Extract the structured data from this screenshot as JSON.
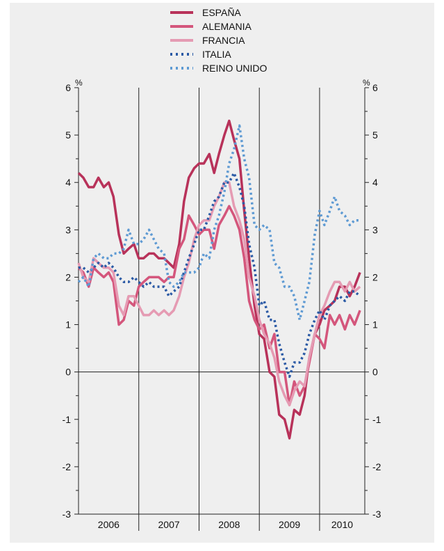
{
  "chart_data": {
    "type": "line",
    "title": "",
    "xlabel": "",
    "ylabel": "%",
    "ylabel_right": "%",
    "ylim": [
      -3,
      6
    ],
    "y_ticks": [
      "-3",
      "-2",
      "-1",
      "0",
      "1",
      "2",
      "3",
      "4",
      "5",
      "6"
    ],
    "x_categories": [
      "2006",
      "2007",
      "2008",
      "2009",
      "2010"
    ],
    "xlim": [
      2006.0,
      2010.75
    ],
    "grid": false,
    "zero_line": true,
    "legend_position": "top-center",
    "series": [
      {
        "name": "ESPAÑA",
        "color": "#b8325a",
        "style": "solid",
        "points": [
          [
            2006.0,
            4.2
          ],
          [
            2006.08,
            4.1
          ],
          [
            2006.17,
            3.9
          ],
          [
            2006.25,
            3.9
          ],
          [
            2006.33,
            4.1
          ],
          [
            2006.42,
            3.9
          ],
          [
            2006.5,
            4.0
          ],
          [
            2006.58,
            3.7
          ],
          [
            2006.67,
            2.9
          ],
          [
            2006.75,
            2.5
          ],
          [
            2006.83,
            2.6
          ],
          [
            2006.92,
            2.7
          ],
          [
            2007.0,
            2.4
          ],
          [
            2007.08,
            2.4
          ],
          [
            2007.17,
            2.5
          ],
          [
            2007.25,
            2.5
          ],
          [
            2007.33,
            2.4
          ],
          [
            2007.42,
            2.4
          ],
          [
            2007.5,
            2.3
          ],
          [
            2007.58,
            2.2
          ],
          [
            2007.67,
            2.7
          ],
          [
            2007.75,
            3.6
          ],
          [
            2007.83,
            4.1
          ],
          [
            2007.92,
            4.3
          ],
          [
            2008.0,
            4.4
          ],
          [
            2008.08,
            4.4
          ],
          [
            2008.17,
            4.6
          ],
          [
            2008.25,
            4.2
          ],
          [
            2008.33,
            4.6
          ],
          [
            2008.42,
            5.0
          ],
          [
            2008.5,
            5.3
          ],
          [
            2008.58,
            4.9
          ],
          [
            2008.67,
            4.5
          ],
          [
            2008.75,
            3.4
          ],
          [
            2008.83,
            2.4
          ],
          [
            2008.92,
            1.4
          ],
          [
            2009.0,
            0.8
          ],
          [
            2009.08,
            0.7
          ],
          [
            2009.17,
            0.0
          ],
          [
            2009.25,
            -0.1
          ],
          [
            2009.33,
            -0.9
          ],
          [
            2009.42,
            -1.0
          ],
          [
            2009.5,
            -1.4
          ],
          [
            2009.58,
            -0.8
          ],
          [
            2009.67,
            -0.9
          ],
          [
            2009.75,
            -0.5
          ],
          [
            2009.83,
            0.3
          ],
          [
            2009.92,
            0.8
          ],
          [
            2010.0,
            1.0
          ],
          [
            2010.08,
            1.3
          ],
          [
            2010.17,
            1.4
          ],
          [
            2010.25,
            1.5
          ],
          [
            2010.33,
            1.8
          ],
          [
            2010.42,
            1.8
          ],
          [
            2010.5,
            1.6
          ],
          [
            2010.58,
            1.8
          ],
          [
            2010.67,
            2.1
          ]
        ]
      },
      {
        "name": "ALEMANIA",
        "color": "#d4567c",
        "style": "solid",
        "points": [
          [
            2006.0,
            2.2
          ],
          [
            2006.08,
            2.1
          ],
          [
            2006.17,
            1.8
          ],
          [
            2006.25,
            2.2
          ],
          [
            2006.33,
            2.1
          ],
          [
            2006.42,
            2.0
          ],
          [
            2006.5,
            2.1
          ],
          [
            2006.58,
            1.9
          ],
          [
            2006.67,
            1.0
          ],
          [
            2006.75,
            1.1
          ],
          [
            2006.83,
            1.5
          ],
          [
            2006.92,
            1.4
          ],
          [
            2007.0,
            1.8
          ],
          [
            2007.08,
            1.9
          ],
          [
            2007.17,
            2.0
          ],
          [
            2007.25,
            2.0
          ],
          [
            2007.33,
            2.0
          ],
          [
            2007.42,
            1.9
          ],
          [
            2007.5,
            2.0
          ],
          [
            2007.58,
            2.0
          ],
          [
            2007.67,
            2.6
          ],
          [
            2007.75,
            2.8
          ],
          [
            2007.83,
            3.3
          ],
          [
            2007.92,
            3.1
          ],
          [
            2008.0,
            2.9
          ],
          [
            2008.08,
            3.0
          ],
          [
            2008.17,
            3.0
          ],
          [
            2008.25,
            2.6
          ],
          [
            2008.33,
            3.1
          ],
          [
            2008.42,
            3.3
          ],
          [
            2008.5,
            3.5
          ],
          [
            2008.58,
            3.3
          ],
          [
            2008.67,
            3.0
          ],
          [
            2008.75,
            2.4
          ],
          [
            2008.83,
            1.5
          ],
          [
            2008.92,
            1.1
          ],
          [
            2009.0,
            0.9
          ],
          [
            2009.08,
            1.0
          ],
          [
            2009.17,
            0.5
          ],
          [
            2009.25,
            0.8
          ],
          [
            2009.33,
            0.0
          ],
          [
            2009.42,
            0.0
          ],
          [
            2009.5,
            -0.7
          ],
          [
            2009.58,
            -0.2
          ],
          [
            2009.67,
            -0.5
          ],
          [
            2009.75,
            -0.3
          ],
          [
            2009.83,
            0.2
          ],
          [
            2009.92,
            0.8
          ],
          [
            2010.0,
            0.7
          ],
          [
            2010.08,
            0.5
          ],
          [
            2010.17,
            1.2
          ],
          [
            2010.25,
            1.0
          ],
          [
            2010.33,
            1.2
          ],
          [
            2010.42,
            0.9
          ],
          [
            2010.5,
            1.2
          ],
          [
            2010.58,
            1.0
          ],
          [
            2010.67,
            1.3
          ]
        ]
      },
      {
        "name": "FRANCIA",
        "color": "#e59bb3",
        "style": "solid",
        "points": [
          [
            2006.0,
            2.3
          ],
          [
            2006.08,
            2.0
          ],
          [
            2006.17,
            1.9
          ],
          [
            2006.25,
            2.4
          ],
          [
            2006.33,
            2.3
          ],
          [
            2006.42,
            2.2
          ],
          [
            2006.5,
            2.2
          ],
          [
            2006.58,
            2.1
          ],
          [
            2006.67,
            1.4
          ],
          [
            2006.75,
            1.2
          ],
          [
            2006.83,
            1.6
          ],
          [
            2006.92,
            1.6
          ],
          [
            2007.0,
            1.4
          ],
          [
            2007.08,
            1.2
          ],
          [
            2007.17,
            1.2
          ],
          [
            2007.25,
            1.3
          ],
          [
            2007.33,
            1.2
          ],
          [
            2007.42,
            1.3
          ],
          [
            2007.5,
            1.2
          ],
          [
            2007.58,
            1.3
          ],
          [
            2007.67,
            1.6
          ],
          [
            2007.75,
            2.0
          ],
          [
            2007.83,
            2.3
          ],
          [
            2007.92,
            2.8
          ],
          [
            2008.0,
            3.1
          ],
          [
            2008.08,
            3.2
          ],
          [
            2008.17,
            3.2
          ],
          [
            2008.25,
            3.5
          ],
          [
            2008.33,
            3.7
          ],
          [
            2008.42,
            4.0
          ],
          [
            2008.5,
            4.0
          ],
          [
            2008.58,
            3.5
          ],
          [
            2008.67,
            3.2
          ],
          [
            2008.75,
            2.8
          ],
          [
            2008.83,
            2.0
          ],
          [
            2008.92,
            1.6
          ],
          [
            2009.0,
            1.1
          ],
          [
            2009.08,
            0.8
          ],
          [
            2009.17,
            0.6
          ],
          [
            2009.25,
            0.3
          ],
          [
            2009.33,
            -0.2
          ],
          [
            2009.42,
            -0.5
          ],
          [
            2009.5,
            -0.7
          ],
          [
            2009.58,
            -0.4
          ],
          [
            2009.67,
            -0.2
          ],
          [
            2009.75,
            -0.3
          ],
          [
            2009.83,
            0.3
          ],
          [
            2009.92,
            0.8
          ],
          [
            2010.0,
            1.2
          ],
          [
            2010.08,
            1.4
          ],
          [
            2010.17,
            1.7
          ],
          [
            2010.25,
            1.9
          ],
          [
            2010.33,
            1.9
          ],
          [
            2010.42,
            1.7
          ],
          [
            2010.5,
            1.9
          ],
          [
            2010.58,
            1.7
          ],
          [
            2010.67,
            1.8
          ]
        ]
      },
      {
        "name": "ITALIA",
        "color": "#2b5aa5",
        "style": "dotted",
        "points": [
          [
            2006.0,
            2.2
          ],
          [
            2006.08,
            2.2
          ],
          [
            2006.17,
            2.1
          ],
          [
            2006.25,
            2.2
          ],
          [
            2006.33,
            2.3
          ],
          [
            2006.42,
            2.2
          ],
          [
            2006.5,
            2.3
          ],
          [
            2006.58,
            2.2
          ],
          [
            2006.67,
            2.0
          ],
          [
            2006.75,
            1.9
          ],
          [
            2006.83,
            1.9
          ],
          [
            2006.92,
            2.0
          ],
          [
            2007.0,
            1.9
          ],
          [
            2007.08,
            1.8
          ],
          [
            2007.17,
            1.9
          ],
          [
            2007.25,
            1.8
          ],
          [
            2007.33,
            1.8
          ],
          [
            2007.42,
            1.8
          ],
          [
            2007.5,
            1.6
          ],
          [
            2007.58,
            1.7
          ],
          [
            2007.67,
            1.8
          ],
          [
            2007.75,
            2.1
          ],
          [
            2007.83,
            2.4
          ],
          [
            2007.92,
            2.7
          ],
          [
            2008.0,
            3.0
          ],
          [
            2008.08,
            3.0
          ],
          [
            2008.17,
            3.3
          ],
          [
            2008.25,
            3.6
          ],
          [
            2008.33,
            3.7
          ],
          [
            2008.42,
            4.0
          ],
          [
            2008.5,
            4.0
          ],
          [
            2008.58,
            4.2
          ],
          [
            2008.67,
            3.9
          ],
          [
            2008.75,
            3.5
          ],
          [
            2008.83,
            2.7
          ],
          [
            2008.92,
            2.2
          ],
          [
            2009.0,
            1.4
          ],
          [
            2009.08,
            1.5
          ],
          [
            2009.17,
            1.1
          ],
          [
            2009.25,
            1.1
          ],
          [
            2009.33,
            0.6
          ],
          [
            2009.42,
            0.2
          ],
          [
            2009.5,
            -0.1
          ],
          [
            2009.58,
            0.2
          ],
          [
            2009.67,
            0.2
          ],
          [
            2009.75,
            0.4
          ],
          [
            2009.83,
            0.8
          ],
          [
            2009.92,
            1.1
          ],
          [
            2010.0,
            1.3
          ],
          [
            2010.08,
            1.1
          ],
          [
            2010.17,
            1.4
          ],
          [
            2010.25,
            1.5
          ],
          [
            2010.33,
            1.6
          ],
          [
            2010.42,
            1.5
          ],
          [
            2010.5,
            1.7
          ],
          [
            2010.58,
            1.7
          ],
          [
            2010.67,
            1.6
          ]
        ]
      },
      {
        "name": "REINO UNIDO",
        "color": "#5e9ad3",
        "style": "dotted",
        "points": [
          [
            2006.0,
            1.9
          ],
          [
            2006.08,
            2.0
          ],
          [
            2006.17,
            1.8
          ],
          [
            2006.25,
            2.4
          ],
          [
            2006.33,
            2.5
          ],
          [
            2006.42,
            2.4
          ],
          [
            2006.5,
            2.4
          ],
          [
            2006.58,
            2.5
          ],
          [
            2006.67,
            2.5
          ],
          [
            2006.75,
            2.6
          ],
          [
            2006.83,
            3.0
          ],
          [
            2006.92,
            2.7
          ],
          [
            2007.0,
            2.7
          ],
          [
            2007.08,
            2.8
          ],
          [
            2007.17,
            3.0
          ],
          [
            2007.25,
            2.8
          ],
          [
            2007.33,
            2.6
          ],
          [
            2007.42,
            2.5
          ],
          [
            2007.5,
            1.9
          ],
          [
            2007.58,
            1.8
          ],
          [
            2007.67,
            1.9
          ],
          [
            2007.75,
            2.1
          ],
          [
            2007.83,
            2.1
          ],
          [
            2007.92,
            2.1
          ],
          [
            2008.0,
            2.2
          ],
          [
            2008.08,
            2.5
          ],
          [
            2008.17,
            2.4
          ],
          [
            2008.25,
            3.0
          ],
          [
            2008.33,
            3.3
          ],
          [
            2008.42,
            3.8
          ],
          [
            2008.5,
            4.4
          ],
          [
            2008.58,
            4.7
          ],
          [
            2008.67,
            5.2
          ],
          [
            2008.75,
            4.5
          ],
          [
            2008.83,
            4.1
          ],
          [
            2008.92,
            3.1
          ],
          [
            2009.0,
            3.0
          ],
          [
            2009.08,
            3.1
          ],
          [
            2009.17,
            3.0
          ],
          [
            2009.25,
            2.3
          ],
          [
            2009.33,
            2.2
          ],
          [
            2009.42,
            1.8
          ],
          [
            2009.5,
            1.8
          ],
          [
            2009.58,
            1.6
          ],
          [
            2009.67,
            1.1
          ],
          [
            2009.75,
            1.5
          ],
          [
            2009.83,
            1.9
          ],
          [
            2009.92,
            2.9
          ],
          [
            2010.0,
            3.4
          ],
          [
            2010.08,
            3.1
          ],
          [
            2010.17,
            3.4
          ],
          [
            2010.25,
            3.7
          ],
          [
            2010.33,
            3.4
          ],
          [
            2010.42,
            3.3
          ],
          [
            2010.5,
            3.1
          ],
          [
            2010.58,
            3.2
          ],
          [
            2010.67,
            3.2
          ]
        ]
      }
    ]
  }
}
